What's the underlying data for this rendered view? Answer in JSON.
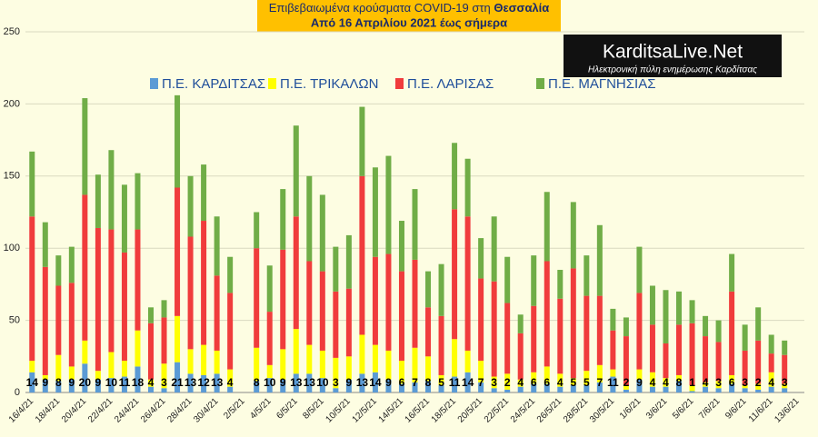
{
  "chart_data": {
    "type": "stacked_bar",
    "title": [
      "Επιβεβαιωμένα κρούσματα COVID-19 στη ",
      "Θεσσαλία"
    ],
    "subtitle": "Από 16 Απριλίου 2021 έως σήμερα",
    "logo": {
      "name": "KarditsaLive.Net",
      "tagline": "Ηλεκτρονική πύλη ενημέρωσης Καρδίτσας"
    },
    "categories": [
      "16/4/21",
      null,
      "18/4/21",
      null,
      "20/4/21",
      null,
      "22/4/21",
      null,
      "24/4/21",
      null,
      "26/4/21",
      null,
      "28/4/21",
      null,
      "30/4/21",
      null,
      "2/5/21",
      null,
      "4/5/21",
      null,
      "6/5/21",
      null,
      "8/5/21",
      null,
      "10/5/21",
      null,
      "12/5/21",
      null,
      "14/5/21",
      null,
      "16/5/21",
      null,
      "18/5/21",
      null,
      "20/5/21",
      null,
      "22/5/21",
      null,
      "24/5/21",
      null,
      "26/5/21",
      null,
      "28/5/21",
      null,
      "30/5/21",
      null,
      "1/6/21",
      null,
      "3/6/21",
      null,
      "5/6/21",
      null,
      "7/6/21",
      null,
      "9/6/21",
      null,
      "11/6/21",
      null,
      "13/6/21"
    ],
    "series": [
      {
        "name": "Π.Ε. ΚΑΡΔΙΤΣΑΣ",
        "color": "#5b9bd5",
        "values": [
          14,
          9,
          8,
          9,
          20,
          9,
          10,
          11,
          18,
          4,
          3,
          21,
          13,
          12,
          13,
          4,
          null,
          8,
          10,
          9,
          13,
          13,
          10,
          3,
          9,
          13,
          14,
          9,
          6,
          7,
          8,
          5,
          11,
          14,
          7,
          3,
          2,
          4,
          6,
          6,
          4,
          5,
          5,
          7,
          11,
          2,
          9,
          4,
          4,
          8,
          1,
          4,
          3,
          6,
          3,
          2,
          4,
          3,
          null
        ]
      },
      {
        "name": "Π.Ε. ΤΡΙΚΑΛΩΝ",
        "color": "#ffff00",
        "values": [
          8,
          3,
          18,
          9,
          16,
          6,
          18,
          11,
          25,
          5,
          17,
          32,
          17,
          21,
          16,
          12,
          null,
          23,
          9,
          21,
          31,
          20,
          19,
          21,
          16,
          27,
          19,
          20,
          16,
          24,
          17,
          7,
          26,
          15,
          15,
          8,
          11,
          5,
          8,
          12,
          9,
          5,
          10,
          12,
          5,
          3,
          7,
          10,
          6,
          4,
          4,
          3,
          5,
          6,
          2,
          4,
          10,
          3,
          null
        ]
      },
      {
        "name": "Π.Ε. ΛΑΡΙΣΑΣ",
        "color": "#f03c3c",
        "values": [
          100,
          75,
          48,
          58,
          101,
          99,
          85,
          75,
          70,
          39,
          32,
          89,
          78,
          86,
          52,
          53,
          null,
          69,
          37,
          69,
          78,
          58,
          55,
          46,
          47,
          110,
          61,
          67,
          62,
          61,
          34,
          41,
          90,
          93,
          57,
          66,
          49,
          32,
          46,
          73,
          52,
          76,
          52,
          48,
          27,
          34,
          53,
          33,
          24,
          35,
          43,
          32,
          27,
          58,
          24,
          30,
          13,
          20,
          null
        ]
      },
      {
        "name": "Π.Ε. ΜΑΓΝΗΣΙΑΣ",
        "color": "#70ad47",
        "values": [
          45,
          31,
          21,
          25,
          67,
          37,
          55,
          47,
          39,
          11,
          12,
          64,
          42,
          39,
          41,
          25,
          null,
          25,
          32,
          42,
          63,
          59,
          53,
          31,
          37,
          48,
          62,
          68,
          35,
          49,
          25,
          36,
          46,
          40,
          28,
          45,
          32,
          13,
          35,
          48,
          20,
          46,
          28,
          49,
          15,
          13,
          32,
          27,
          37,
          23,
          16,
          14,
          15,
          26,
          18,
          23,
          13,
          10,
          null
        ]
      }
    ],
    "labeled_series": 0,
    "ylim": [
      0,
      250
    ],
    "yticks": [
      0,
      50,
      100,
      150,
      200,
      250
    ],
    "grid": true
  }
}
